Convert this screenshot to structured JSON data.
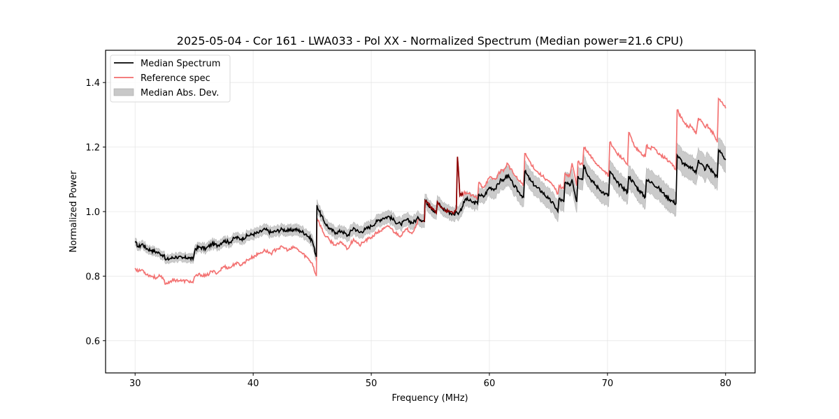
{
  "chart_data": {
    "type": "line",
    "title": "2025-05-04 - Cor 161 - LWA033 - Pol XX - Normalized Spectrum (Median power=21.6 CPU)",
    "xlabel": "Frequency (MHz)",
    "ylabel": "Normalized Power",
    "xlim": [
      27.5,
      82.5
    ],
    "ylim": [
      0.5,
      1.5
    ],
    "xticks": [
      30,
      40,
      50,
      60,
      70,
      80
    ],
    "xtick_labels": [
      "30",
      "40",
      "50",
      "60",
      "70",
      "80"
    ],
    "yticks": [
      0.6,
      0.8,
      1.0,
      1.2,
      1.4
    ],
    "ytick_labels": [
      "0.6",
      "0.8",
      "1.0",
      "1.2",
      "1.4"
    ],
    "grid": true,
    "legend": {
      "placement": "top-left",
      "entries": [
        {
          "label": "Median Spectrum",
          "kind": "line",
          "color": "#000000"
        },
        {
          "label": "Reference spec",
          "kind": "line",
          "color": "#f26b6b"
        },
        {
          "label": "Median Abs. Dev.",
          "kind": "patch",
          "color": "#c8c8c8"
        }
      ]
    },
    "series": [
      {
        "name": "Median Spectrum",
        "color": "#000000",
        "x": [
          30.0,
          30.3,
          30.6,
          31.0,
          31.4,
          31.8,
          32.1,
          32.4,
          32.6,
          33.0,
          33.5,
          34.0,
          34.5,
          34.9,
          35.1,
          35.5,
          36.0,
          36.5,
          37.0,
          37.5,
          38.0,
          38.5,
          39.0,
          39.5,
          40.0,
          40.5,
          41.0,
          41.5,
          42.0,
          42.5,
          43.0,
          43.5,
          44.0,
          44.5,
          45.0,
          45.35,
          45.4,
          45.6,
          46.0,
          46.5,
          47.0,
          47.5,
          48.0,
          48.5,
          49.0,
          49.5,
          50.0,
          50.5,
          51.0,
          51.5,
          52.0,
          52.5,
          53.0,
          53.5,
          54.0,
          54.5,
          54.55,
          55.0,
          55.5,
          55.6,
          56.0,
          56.5,
          57.0,
          57.2,
          57.3,
          57.5,
          58.0,
          58.5,
          59.0,
          59.1,
          59.5,
          60.0,
          60.5,
          61.0,
          61.2,
          61.5,
          62.0,
          62.5,
          62.9,
          63.0,
          63.5,
          64.0,
          64.5,
          65.0,
          65.5,
          65.8,
          65.9,
          66.3,
          66.4,
          66.8,
          67.0,
          67.4,
          67.5,
          67.9,
          68.0,
          68.4,
          68.8,
          69.3,
          69.8,
          70.1,
          70.2,
          70.8,
          71.3,
          71.7,
          71.8,
          72.3,
          72.7,
          73.2,
          73.3,
          73.6,
          73.8,
          74.4,
          74.9,
          75.4,
          75.8,
          75.9,
          76.4,
          76.9,
          77.0,
          77.5,
          77.7,
          78.3,
          78.4,
          79.0,
          79.3,
          79.4,
          79.7,
          80.0
        ],
        "values": [
          0.905,
          0.89,
          0.9,
          0.885,
          0.88,
          0.875,
          0.87,
          0.865,
          0.85,
          0.855,
          0.86,
          0.855,
          0.858,
          0.852,
          0.885,
          0.89,
          0.885,
          0.9,
          0.895,
          0.91,
          0.905,
          0.92,
          0.915,
          0.925,
          0.93,
          0.935,
          0.945,
          0.935,
          0.94,
          0.945,
          0.94,
          0.945,
          0.94,
          0.93,
          0.91,
          0.86,
          1.02,
          1.0,
          0.97,
          0.945,
          0.935,
          0.94,
          0.925,
          0.95,
          0.935,
          0.945,
          0.955,
          0.97,
          0.98,
          0.985,
          0.97,
          0.96,
          0.975,
          0.965,
          0.98,
          0.97,
          1.035,
          1.015,
          0.995,
          1.03,
          1.01,
          1.0,
          0.99,
          1.0,
          0.995,
          1.0,
          1.04,
          1.03,
          1.025,
          1.055,
          1.045,
          1.075,
          1.07,
          1.1,
          1.095,
          1.115,
          1.085,
          1.06,
          1.045,
          1.125,
          1.095,
          1.075,
          1.06,
          1.04,
          1.02,
          1.0,
          1.04,
          1.03,
          1.09,
          1.08,
          1.1,
          1.03,
          1.11,
          1.1,
          1.145,
          1.11,
          1.09,
          1.07,
          1.055,
          1.05,
          1.125,
          1.09,
          1.075,
          1.06,
          1.11,
          1.085,
          1.065,
          1.045,
          1.1,
          1.09,
          1.09,
          1.07,
          1.05,
          1.035,
          1.025,
          1.175,
          1.15,
          1.135,
          1.14,
          1.12,
          1.16,
          1.13,
          1.145,
          1.12,
          1.105,
          1.19,
          1.18,
          1.16
        ]
      },
      {
        "name": "Reference spec",
        "color": "#f26b6b",
        "x": [
          30.0,
          30.3,
          30.6,
          31.0,
          31.4,
          31.8,
          32.1,
          32.4,
          32.6,
          33.0,
          33.5,
          34.0,
          34.5,
          34.9,
          35.1,
          35.5,
          36.0,
          36.5,
          37.0,
          37.5,
          38.0,
          38.5,
          39.0,
          39.5,
          40.0,
          40.5,
          41.0,
          41.5,
          42.0,
          42.5,
          43.0,
          43.5,
          44.0,
          44.5,
          45.0,
          45.35,
          45.4,
          45.6,
          46.0,
          46.5,
          47.0,
          47.5,
          48.0,
          48.5,
          49.0,
          49.5,
          50.0,
          50.5,
          51.0,
          51.5,
          52.0,
          52.5,
          53.0,
          53.5,
          54.0,
          54.5,
          54.55,
          55.0,
          55.5,
          55.6,
          56.0,
          56.5,
          57.0,
          57.2,
          57.3,
          57.5,
          58.0,
          58.5,
          59.0,
          59.1,
          59.5,
          60.0,
          60.5,
          61.0,
          61.2,
          61.5,
          62.0,
          62.5,
          62.9,
          63.0,
          63.5,
          64.0,
          64.5,
          65.0,
          65.5,
          65.8,
          65.9,
          66.3,
          66.4,
          66.8,
          67.0,
          67.4,
          67.5,
          67.9,
          68.0,
          68.4,
          68.8,
          69.3,
          69.8,
          70.1,
          70.2,
          70.8,
          71.3,
          71.7,
          71.8,
          72.3,
          72.7,
          73.2,
          73.3,
          73.6,
          73.8,
          74.4,
          74.9,
          75.4,
          75.8,
          75.9,
          76.4,
          76.9,
          77.0,
          77.5,
          77.7,
          78.3,
          78.4,
          79.0,
          79.3,
          79.4,
          79.7,
          80.0
        ],
        "values": [
          0.825,
          0.815,
          0.82,
          0.805,
          0.8,
          0.795,
          0.8,
          0.79,
          0.775,
          0.785,
          0.788,
          0.785,
          0.785,
          0.78,
          0.8,
          0.805,
          0.8,
          0.815,
          0.81,
          0.83,
          0.825,
          0.84,
          0.835,
          0.85,
          0.86,
          0.87,
          0.88,
          0.87,
          0.885,
          0.89,
          0.88,
          0.89,
          0.875,
          0.86,
          0.84,
          0.8,
          0.98,
          0.965,
          0.93,
          0.91,
          0.895,
          0.905,
          0.885,
          0.915,
          0.895,
          0.91,
          0.92,
          0.935,
          0.945,
          0.955,
          0.935,
          0.925,
          0.945,
          0.935,
          0.975,
          0.97,
          1.035,
          1.015,
          0.995,
          1.03,
          1.01,
          1.0,
          0.995,
          1.01,
          1.17,
          1.05,
          1.06,
          1.05,
          1.04,
          1.09,
          1.075,
          1.105,
          1.1,
          1.13,
          1.125,
          1.15,
          1.12,
          1.095,
          1.085,
          1.18,
          1.15,
          1.125,
          1.11,
          1.095,
          1.075,
          1.055,
          1.08,
          1.07,
          1.12,
          1.11,
          1.15,
          1.08,
          1.155,
          1.145,
          1.2,
          1.18,
          1.16,
          1.14,
          1.125,
          1.11,
          1.215,
          1.18,
          1.165,
          1.145,
          1.245,
          1.2,
          1.185,
          1.17,
          1.205,
          1.195,
          1.2,
          1.18,
          1.165,
          1.15,
          1.13,
          1.315,
          1.28,
          1.26,
          1.27,
          1.24,
          1.29,
          1.26,
          1.27,
          1.24,
          1.215,
          1.35,
          1.34,
          1.32
        ]
      }
    ],
    "band": {
      "name": "Median Abs. Dev.",
      "color": "#c8c8c8",
      "half_width_start": 0.012,
      "half_width_end": 0.04
    }
  }
}
